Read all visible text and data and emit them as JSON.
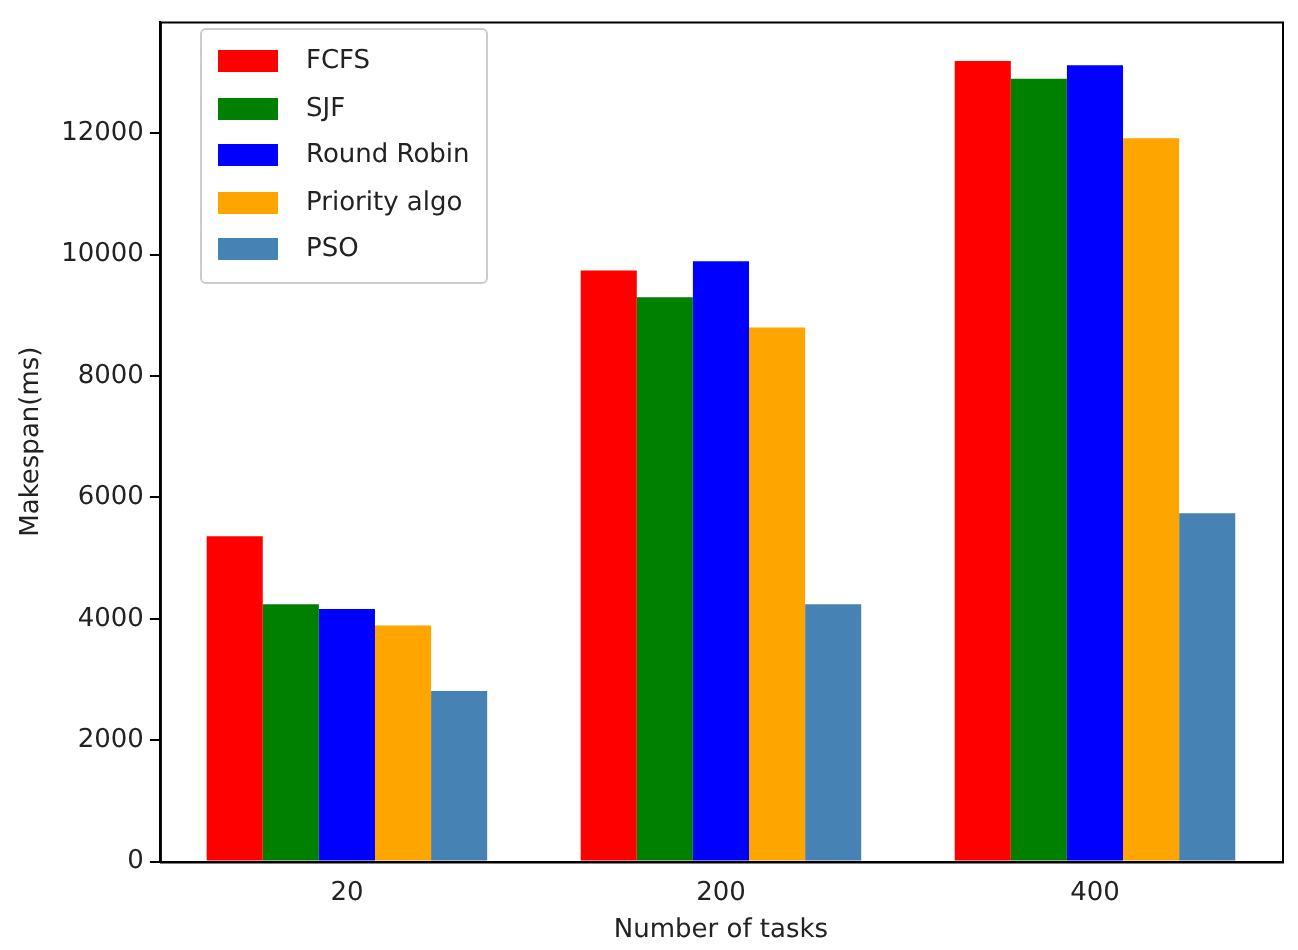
{
  "chart_data": {
    "type": "bar",
    "xlabel": "Number of tasks",
    "ylabel": "Makespan(ms)",
    "categories": [
      "20",
      "200",
      "400"
    ],
    "series": [
      {
        "name": "FCFS",
        "color": "#ff0000",
        "values": [
          5360,
          9740,
          13190
        ]
      },
      {
        "name": "SJF",
        "color": "#008000",
        "values": [
          4240,
          9300,
          12900
        ]
      },
      {
        "name": "Round Robin",
        "color": "#0000ff",
        "values": [
          4160,
          9890,
          13120
        ]
      },
      {
        "name": "Priority algo",
        "color": "#ffa500",
        "values": [
          3890,
          8800,
          11920
        ]
      },
      {
        "name": "PSO",
        "color": "#4682b4",
        "values": [
          2810,
          4240,
          5740
        ]
      }
    ],
    "ylim": [
      0,
      13840
    ],
    "yticks": [
      0,
      2000,
      4000,
      6000,
      8000,
      10000,
      12000
    ],
    "grid": false,
    "legend": "top left"
  }
}
